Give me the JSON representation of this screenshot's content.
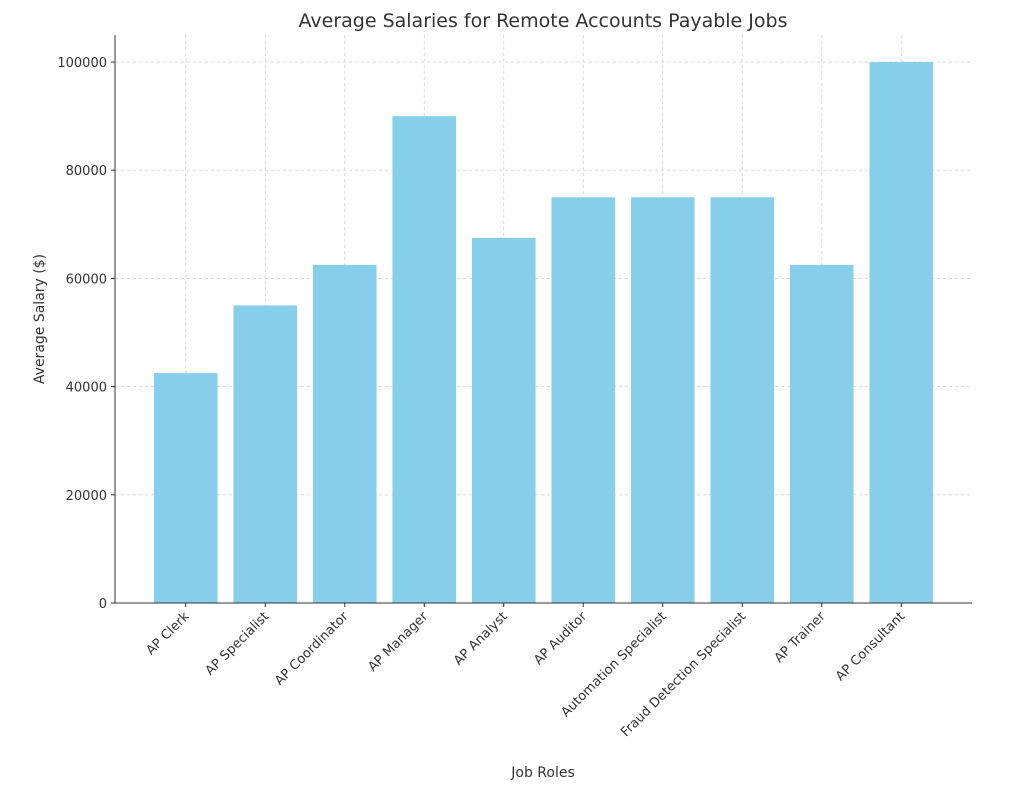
{
  "chart_data": {
    "type": "bar",
    "title": "Average Salaries for Remote Accounts Payable Jobs",
    "xlabel": "Job Roles",
    "ylabel": "Average Salary ($)",
    "categories": [
      "AP Clerk",
      "AP Specialist",
      "AP Coordinator",
      "AP Manager",
      "AP Analyst",
      "AP Auditor",
      "Automation Specialist",
      "Fraud Detection Specialist",
      "AP Trainer",
      "AP Consultant"
    ],
    "values": [
      42500,
      55000,
      62500,
      90000,
      67500,
      75000,
      75000,
      75000,
      62500,
      100000
    ],
    "ylim": [
      0,
      105000
    ],
    "yticks": [
      0,
      20000,
      40000,
      60000,
      80000,
      100000
    ],
    "grid": true,
    "bar_color": "#87ceeb"
  }
}
